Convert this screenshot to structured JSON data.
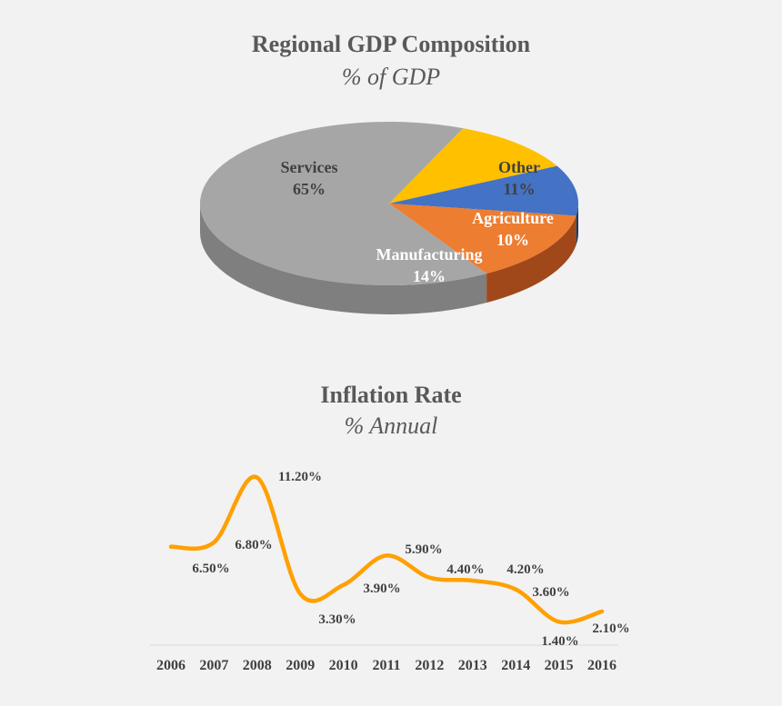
{
  "chart_data": [
    {
      "type": "pie",
      "title": "Regional GDP Composition",
      "subtitle": "% of GDP",
      "slices": [
        {
          "label": "Services",
          "value": 65,
          "display": "65%",
          "color": "#a6a6a6",
          "side_color": "#7f7f7f",
          "text_color": "#404040"
        },
        {
          "label": "Manufacturing",
          "value": 14,
          "display": "14%",
          "color": "#ed7d31",
          "side_color": "#a0481a",
          "text_color": "#ffffff"
        },
        {
          "label": "Agriculture",
          "value": 10,
          "display": "10%",
          "color": "#4472c4",
          "side_color": "#1f3864",
          "text_color": "#ffffff"
        },
        {
          "label": "Other",
          "value": 11,
          "display": "11%",
          "color": "#ffc000",
          "side_color": "#b38600",
          "text_color": "#404040"
        }
      ],
      "legend": "none"
    },
    {
      "type": "line",
      "title": "Inflation Rate",
      "subtitle": "% Annual",
      "categories": [
        "2006",
        "2007",
        "2008",
        "2009",
        "2010",
        "2011",
        "2012",
        "2013",
        "2014",
        "2015",
        "2016"
      ],
      "series": [
        {
          "values": [
            6.5,
            6.8,
            11.2,
            3.3,
            3.9,
            5.9,
            4.4,
            4.2,
            3.6,
            1.4,
            2.1
          ],
          "labels": [
            "6.50%",
            "6.80%",
            "11.20%",
            "3.30%",
            "3.90%",
            "5.90%",
            "4.40%",
            "4.20%",
            "3.60%",
            "1.40%",
            "2.10%"
          ],
          "color": "#ffa000"
        }
      ],
      "smooth": true,
      "grid": false,
      "legend": "none"
    }
  ]
}
